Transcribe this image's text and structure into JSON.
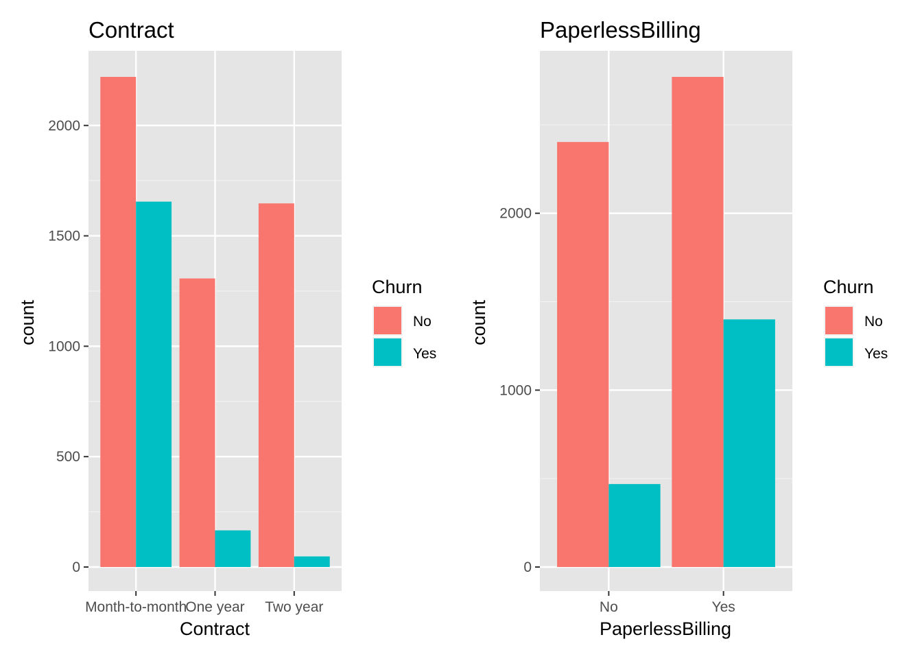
{
  "chart_data": [
    {
      "type": "bar",
      "title": "Contract",
      "xlabel": "Contract",
      "ylabel": "count",
      "categories": [
        "Month-to-month",
        "One year",
        "Two year"
      ],
      "series": [
        {
          "name": "No",
          "values": [
            2220,
            1307,
            1647
          ],
          "color": "#F8766D"
        },
        {
          "name": "Yes",
          "values": [
            1655,
            166,
            48
          ],
          "color": "#00BFC4"
        }
      ],
      "ylim": [
        0,
        2220
      ],
      "yticks": [
        0,
        500,
        1000,
        1500,
        2000
      ],
      "grid": true,
      "legend": {
        "title": "Churn",
        "entries": [
          "No",
          "Yes"
        ],
        "placement": "right"
      }
    },
    {
      "type": "bar",
      "title": "PaperlessBilling",
      "xlabel": "PaperlessBilling",
      "ylabel": "count",
      "categories": [
        "No",
        "Yes"
      ],
      "series": [
        {
          "name": "No",
          "values": [
            2403,
            2771
          ],
          "color": "#F8766D"
        },
        {
          "name": "Yes",
          "values": [
            469,
            1400
          ],
          "color": "#00BFC4"
        }
      ],
      "ylim": [
        0,
        2771
      ],
      "yticks": [
        0,
        1000,
        2000
      ],
      "grid": true,
      "legend": {
        "title": "Churn",
        "entries": [
          "No",
          "Yes"
        ],
        "placement": "right"
      }
    }
  ]
}
